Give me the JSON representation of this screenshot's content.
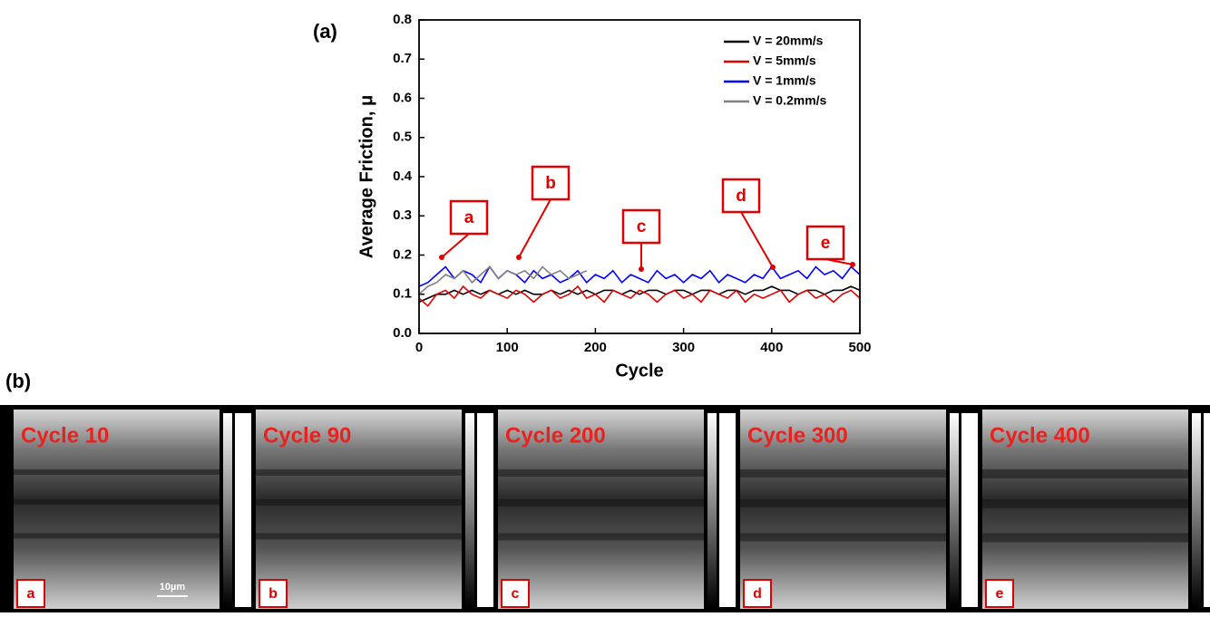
{
  "chart_data": {
    "type": "line",
    "ylabel": "Average Friction, μ",
    "xlabel": "Cycle",
    "x": [
      0,
      10,
      20,
      30,
      40,
      50,
      60,
      70,
      80,
      90,
      100,
      110,
      120,
      130,
      140,
      150,
      160,
      170,
      180,
      190,
      200,
      210,
      220,
      230,
      240,
      250,
      260,
      270,
      280,
      290,
      300,
      310,
      320,
      330,
      340,
      350,
      360,
      370,
      380,
      390,
      400,
      410,
      420,
      430,
      440,
      450,
      460,
      470,
      480,
      490,
      500
    ],
    "series": [
      {
        "name": "V = 20mm/s",
        "color": "#000000",
        "values": [
          0.08,
          0.09,
          0.1,
          0.1,
          0.11,
          0.1,
          0.11,
          0.1,
          0.11,
          0.1,
          0.11,
          0.1,
          0.11,
          0.1,
          0.1,
          0.11,
          0.1,
          0.11,
          0.1,
          0.11,
          0.1,
          0.11,
          0.11,
          0.1,
          0.11,
          0.1,
          0.11,
          0.11,
          0.1,
          0.11,
          0.11,
          0.1,
          0.11,
          0.11,
          0.1,
          0.11,
          0.11,
          0.1,
          0.11,
          0.11,
          0.12,
          0.11,
          0.11,
          0.1,
          0.11,
          0.11,
          0.1,
          0.11,
          0.11,
          0.12,
          0.11
        ]
      },
      {
        "name": "V = 5mm/s",
        "color": "#e00000",
        "values": [
          0.09,
          0.07,
          0.1,
          0.11,
          0.09,
          0.12,
          0.1,
          0.09,
          0.11,
          0.1,
          0.09,
          0.11,
          0.1,
          0.08,
          0.1,
          0.11,
          0.09,
          0.1,
          0.12,
          0.09,
          0.1,
          0.08,
          0.11,
          0.1,
          0.09,
          0.11,
          0.1,
          0.08,
          0.1,
          0.11,
          0.09,
          0.1,
          0.08,
          0.11,
          0.1,
          0.09,
          0.11,
          0.08,
          0.1,
          0.09,
          0.1,
          0.11,
          0.08,
          0.1,
          0.11,
          0.09,
          0.1,
          0.08,
          0.1,
          0.11,
          0.09
        ]
      },
      {
        "name": "V = 1mm/s",
        "color": "#0000ff",
        "values": [
          0.12,
          0.13,
          0.15,
          0.17,
          0.14,
          0.16,
          0.15,
          0.13,
          0.17,
          0.14,
          0.16,
          0.15,
          0.13,
          0.16,
          0.14,
          0.15,
          0.13,
          0.14,
          0.16,
          0.13,
          0.15,
          0.14,
          0.16,
          0.13,
          0.15,
          0.14,
          0.13,
          0.16,
          0.14,
          0.15,
          0.13,
          0.15,
          0.14,
          0.16,
          0.13,
          0.15,
          0.14,
          0.13,
          0.15,
          0.14,
          0.17,
          0.14,
          0.15,
          0.16,
          0.14,
          0.17,
          0.15,
          0.16,
          0.14,
          0.17,
          0.15
        ]
      },
      {
        "name": "V = 0.2mm/s",
        "color": "#808080",
        "values": [
          0.1,
          0.12,
          0.13,
          0.15,
          0.14,
          0.16,
          0.13,
          0.15,
          0.17,
          0.14,
          0.16,
          0.15,
          0.16,
          0.14,
          0.17,
          0.15,
          0.16,
          0.14,
          0.15,
          0.16,
          null,
          null,
          null,
          null,
          null,
          null,
          null,
          null,
          null,
          null,
          null,
          null,
          null,
          null,
          null,
          null,
          null,
          null,
          null,
          null,
          null,
          null,
          null,
          null,
          null,
          null,
          null,
          null,
          null,
          null,
          null
        ]
      }
    ],
    "xlim": [
      0,
      500
    ],
    "xticks": [
      0,
      100,
      200,
      300,
      400,
      500
    ],
    "ylim": [
      0,
      0.8
    ],
    "yticks": [
      {
        "value": 0,
        "label": "0.0"
      },
      0.1,
      0.2,
      0.3,
      0.4,
      0.5,
      0.6,
      0.7,
      0.8
    ],
    "annotations": [
      "a",
      "b",
      "c",
      "d",
      "e"
    ],
    "legend": "upper right"
  },
  "panel_labels": [
    "(a)",
    "(b)"
  ],
  "images": [
    {
      "title": "Cycle 10",
      "letter": "a",
      "scale_bar": "10µm"
    },
    {
      "title": "Cycle 90",
      "letter": "b"
    },
    {
      "title": "Cycle 200",
      "letter": "c"
    },
    {
      "title": "Cycle 300",
      "letter": "d"
    },
    {
      "title": "Cycle 400",
      "letter": "e"
    }
  ]
}
